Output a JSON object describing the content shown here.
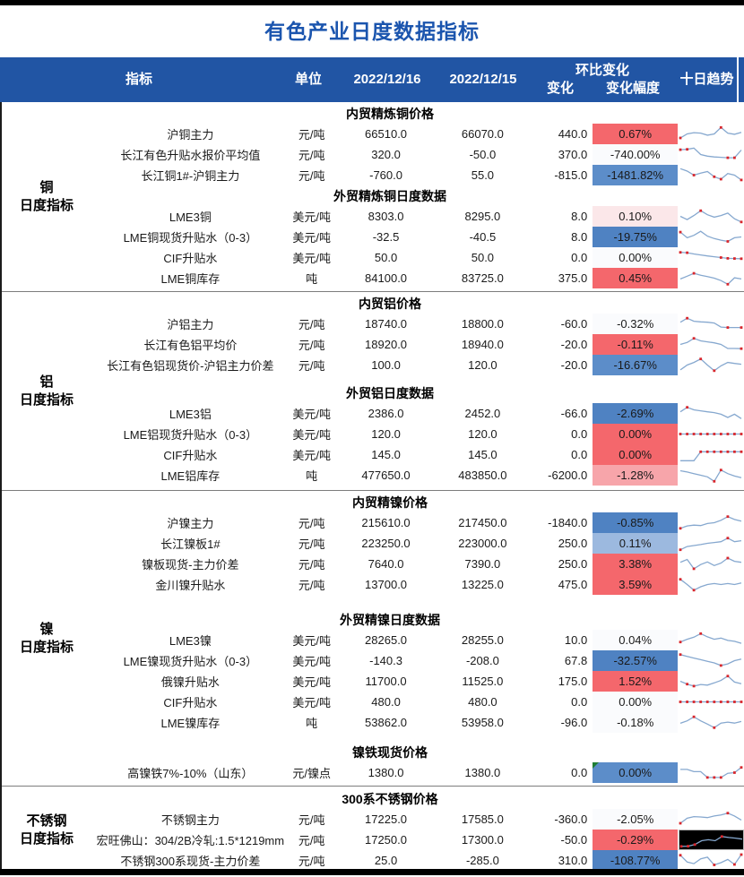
{
  "title": "有色产业日度数据指标",
  "header": {
    "indicator": "指标",
    "unit": "单位",
    "date_current": "2022/12/16",
    "date_previous": "2022/12/15",
    "mom_group": "环比变化",
    "change": "变化",
    "change_rate": "变化幅度",
    "trend": "十日趋势"
  },
  "colors": {
    "header_bg": "#2155a4",
    "title_blue": "#1b55ae",
    "red": "#f4676c",
    "pink": "#f7a5aa",
    "pale_pink": "#fbe7e9",
    "near_white": "#fafbfd",
    "blue_strong": "#4f82c2",
    "blue_mid": "#5c8dc9",
    "blue_light": "#9cb9df",
    "spark_line": "#86a8cf",
    "spark_marker": "#d9262c",
    "comment_green": "#1e7e34"
  },
  "sections": [
    {
      "label_lines": [
        "铜",
        "日度指标"
      ],
      "css": "sec-cu",
      "blocks": [
        {
          "type": "subheader",
          "text": "内贸精炼铜价格",
          "gap": 0
        },
        {
          "type": "row",
          "name": "沪铜主力",
          "unit": "元/吨",
          "v16": "66510.0",
          "v15": "66070.0",
          "chg": "440.0",
          "rate": "0.67%",
          "rate_bg": "#f4676c",
          "spark": {
            "points": [
              0.25,
              0.5,
              0.58,
              0.55,
              0.42,
              0.5,
              0.9,
              0.55,
              0.48,
              0.6
            ],
            "markers": [
              0,
              6
            ]
          }
        },
        {
          "type": "row",
          "name": "长江有色升贴水报价平均值",
          "unit": "元/吨",
          "v16": "320.0",
          "v15": "-50.0",
          "chg": "370.0",
          "rate": "-740.00%",
          "rate_bg": "#fafbfd",
          "spark": {
            "points": [
              0.8,
              0.82,
              0.9,
              0.5,
              0.4,
              0.35,
              0.33,
              0.3,
              0.3,
              0.78
            ],
            "markers": [
              0,
              1,
              7,
              8
            ]
          }
        },
        {
          "type": "row",
          "name": "长江铜1#-沪铜主力",
          "unit": "元/吨",
          "v16": "-760.0",
          "v15": "55.0",
          "chg": "-815.0",
          "rate": "-1481.82%",
          "rate_bg": "#5c8dc9",
          "spark": {
            "points": [
              0.9,
              0.75,
              0.5,
              0.62,
              0.72,
              0.4,
              0.25,
              0.6,
              0.5,
              0.2
            ],
            "markers": [
              2,
              5,
              6,
              9
            ]
          }
        },
        {
          "type": "subheader",
          "text": "外贸精炼铜日度数据",
          "gap": 2
        },
        {
          "type": "row",
          "name": "LME3铜",
          "unit": "美元/吨",
          "v16": "8303.0",
          "v15": "8295.0",
          "chg": "8.0",
          "rate": "0.10%",
          "rate_bg": "#fbe7e9",
          "spark": {
            "points": [
              0.5,
              0.3,
              0.55,
              0.85,
              0.6,
              0.45,
              0.55,
              0.7,
              0.35,
              0.15
            ],
            "markers": [
              3,
              9
            ]
          }
        },
        {
          "type": "row",
          "name": "LME铜现货升贴水（0-3）",
          "unit": "美元/吨",
          "v16": "-32.5",
          "v15": "-40.5",
          "chg": "8.0",
          "rate": "-19.75%",
          "rate_bg": "#4f82c2",
          "spark": {
            "points": [
              0.8,
              0.45,
              0.6,
              0.85,
              0.55,
              0.4,
              0.3,
              0.22,
              0.45,
              0.5
            ],
            "markers": [
              0,
              7
            ]
          }
        },
        {
          "type": "row",
          "name": "CIF升贴水",
          "unit": "美元/吨",
          "v16": "50.0",
          "v15": "50.0",
          "chg": "0.0",
          "rate": "0.00%",
          "rate_bg": "#fafbfd",
          "spark": {
            "points": [
              0.82,
              0.8,
              0.72,
              0.66,
              0.6,
              0.55,
              0.5,
              0.45,
              0.44,
              0.43
            ],
            "markers": [
              0,
              1,
              6,
              7,
              8,
              9
            ]
          }
        },
        {
          "type": "row",
          "name": "LME铜库存",
          "unit": "吨",
          "v16": "84100.0",
          "v15": "83725.0",
          "chg": "375.0",
          "rate": "0.45%",
          "rate_bg": "#f4676c",
          "spark": {
            "points": [
              0.45,
              0.62,
              0.8,
              0.68,
              0.6,
              0.5,
              0.35,
              0.12,
              0.52,
              0.45
            ],
            "markers": [
              2,
              7
            ]
          }
        }
      ]
    },
    {
      "label_lines": [
        "铝",
        "日度指标"
      ],
      "css": "sec-al",
      "blocks": [
        {
          "type": "subheader",
          "text": "内贸铝价格",
          "gap": 0
        },
        {
          "type": "row",
          "name": "沪铝主力",
          "unit": "元/吨",
          "v16": "18740.0",
          "v15": "18800.0",
          "chg": "-60.0",
          "rate": "-0.32%",
          "rate_bg": "#fafbfd",
          "spark": {
            "points": [
              0.6,
              0.85,
              0.66,
              0.62,
              0.6,
              0.55,
              0.3,
              0.27,
              0.27,
              0.27
            ],
            "markers": [
              1,
              7,
              9
            ]
          }
        },
        {
          "type": "row",
          "name": "长江有色铝平均价",
          "unit": "元/吨",
          "v16": "18920.0",
          "v15": "18940.0",
          "chg": "-20.0",
          "rate": "-0.11%",
          "rate_bg": "#f4676c",
          "spark": {
            "points": [
              0.5,
              0.62,
              0.88,
              0.72,
              0.66,
              0.6,
              0.5,
              0.25,
              0.25,
              0.24
            ],
            "markers": [
              2,
              9
            ]
          }
        },
        {
          "type": "row",
          "name": "长江有色铝现货价-沪铝主力价差",
          "unit": "元/吨",
          "v16": "100.0",
          "v15": "120.0",
          "chg": "-20.0",
          "rate": "-16.67%",
          "rate_bg": "#5c8dc9",
          "spark": {
            "points": [
              0.2,
              0.5,
              0.66,
              0.88,
              0.5,
              0.15,
              0.45,
              0.66,
              0.6,
              0.55
            ],
            "markers": [
              3,
              5
            ]
          }
        },
        {
          "type": "subheader",
          "text": "外贸铝日度数据",
          "gap": 10
        },
        {
          "type": "row",
          "name": "LME3铝",
          "unit": "美元/吨",
          "v16": "2386.0",
          "v15": "2452.0",
          "chg": "-66.0",
          "rate": "-2.69%",
          "rate_bg": "#4f82c2",
          "spark": {
            "points": [
              0.6,
              0.88,
              0.72,
              0.66,
              0.6,
              0.55,
              0.45,
              0.25,
              0.45,
              0.18
            ],
            "markers": [
              1
            ]
          }
        },
        {
          "type": "row",
          "name": "LME铝现货升贴水（0-3）",
          "unit": "美元/吨",
          "v16": "120.0",
          "v15": "120.0",
          "chg": "0.0",
          "rate": "0.00%",
          "rate_bg": "#f4676c",
          "spark": {
            "points": [
              0.5,
              0.5,
              0.5,
              0.5,
              0.5,
              0.5,
              0.5,
              0.5,
              0.5,
              0.5
            ],
            "markers": [
              0,
              1,
              2,
              3,
              4,
              5,
              6,
              7,
              8,
              9
            ]
          }
        },
        {
          "type": "row",
          "name": "CIF升贴水",
          "unit": "美元/吨",
          "v16": "145.0",
          "v15": "145.0",
          "chg": "0.0",
          "rate": "0.00%",
          "rate_bg": "#f4676c",
          "spark": {
            "points": [
              0.12,
              0.12,
              0.12,
              0.68,
              0.68,
              0.68,
              0.68,
              0.68,
              0.68,
              0.68
            ],
            "markers": [
              3,
              4,
              5,
              6,
              7,
              8,
              9
            ]
          }
        },
        {
          "type": "row",
          "name": "LME铝库存",
          "unit": "吨",
          "v16": "477650.0",
          "v15": "483850.0",
          "chg": "-6200.0",
          "rate": "-1.28%",
          "rate_bg": "#f7a5aa",
          "spark": {
            "points": [
              0.78,
              0.7,
              0.6,
              0.5,
              0.4,
              0.12,
              0.82,
              0.6,
              0.45,
              0.35
            ],
            "markers": [
              5,
              6
            ]
          }
        }
      ]
    },
    {
      "label_lines": [
        "镍",
        "日度指标"
      ],
      "css": "sec-ni",
      "blocks": [
        {
          "type": "subheader",
          "text": "内贸精镍价格",
          "gap": 0
        },
        {
          "type": "row",
          "name": "沪镍主力",
          "unit": "元/吨",
          "v16": "215610.0",
          "v15": "217450.0",
          "chg": "-1840.0",
          "rate": "-0.85%",
          "rate_bg": "#4f82c2",
          "spark": {
            "points": [
              0.15,
              0.3,
              0.35,
              0.32,
              0.45,
              0.5,
              0.65,
              0.88,
              0.7,
              0.6
            ],
            "markers": [
              0,
              7
            ]
          }
        },
        {
          "type": "row",
          "name": "长江镍板1#",
          "unit": "元/吨",
          "v16": "223250.0",
          "v15": "223000.0",
          "chg": "250.0",
          "rate": "0.11%",
          "rate_bg": "#9cb9df",
          "spark": {
            "points": [
              0.1,
              0.3,
              0.36,
              0.42,
              0.5,
              0.55,
              0.6,
              0.82,
              0.6,
              0.66
            ],
            "markers": [
              0,
              7
            ]
          }
        },
        {
          "type": "row",
          "name": "镍板现货-主力价差",
          "unit": "元/吨",
          "v16": "7640.0",
          "v15": "7390.0",
          "chg": "250.0",
          "rate": "3.38%",
          "rate_bg": "#f4676c",
          "spark": {
            "points": [
              0.6,
              0.78,
              0.2,
              0.46,
              0.62,
              0.4,
              0.55,
              0.86,
              0.66,
              0.6
            ],
            "markers": [
              2,
              7
            ]
          }
        },
        {
          "type": "row",
          "name": "金川镍升贴水",
          "unit": "元/吨",
          "v16": "13700.0",
          "v15": "13225.0",
          "chg": "475.0",
          "rate": "3.59%",
          "rate_bg": "#f4676c",
          "spark": {
            "points": [
              0.82,
              0.5,
              0.15,
              0.36,
              0.5,
              0.56,
              0.5,
              0.56,
              0.5,
              0.6
            ],
            "markers": [
              0,
              2
            ]
          }
        },
        {
          "type": "subheader",
          "text": "外贸精镍日度数据",
          "gap": 18
        },
        {
          "type": "row",
          "name": "LME3镍",
          "unit": "美元/吨",
          "v16": "28265.0",
          "v15": "28255.0",
          "chg": "10.0",
          "rate": "0.04%",
          "rate_bg": "#fafbfd",
          "spark": {
            "points": [
              0.38,
              0.55,
              0.68,
              0.9,
              0.7,
              0.55,
              0.62,
              0.48,
              0.42,
              0.3
            ],
            "markers": [
              0,
              3
            ]
          }
        },
        {
          "type": "row",
          "name": "LME镍现货升贴水（0-3）",
          "unit": "美元/吨",
          "v16": "-140.3",
          "v15": "-208.0",
          "chg": "67.8",
          "rate": "-32.57%",
          "rate_bg": "#4f82c2",
          "spark": {
            "points": [
              0.88,
              0.76,
              0.66,
              0.56,
              0.46,
              0.36,
              0.2,
              0.3,
              0.5,
              0.6
            ],
            "markers": [
              0,
              6
            ]
          }
        },
        {
          "type": "row",
          "name": "俄镍升贴水",
          "unit": "美元/吨",
          "v16": "11700.0",
          "v15": "11525.0",
          "chg": "175.0",
          "rate": "1.52%",
          "rate_bg": "#f4676c",
          "spark": {
            "points": [
              0.5,
              0.32,
              0.2,
              0.3,
              0.26,
              0.4,
              0.55,
              0.82,
              0.45,
              0.35
            ],
            "markers": [
              1,
              2,
              7
            ]
          }
        },
        {
          "type": "row",
          "name": "CIF升贴水",
          "unit": "美元/吨",
          "v16": "480.0",
          "v15": "480.0",
          "chg": "0.0",
          "rate": "0.00%",
          "rate_bg": "#fafbfd",
          "spark": {
            "points": [
              0.5,
              0.5,
              0.5,
              0.5,
              0.5,
              0.5,
              0.5,
              0.5,
              0.5,
              0.5
            ],
            "markers": [
              0,
              1,
              2,
              3,
              4,
              5,
              6,
              7,
              8,
              9
            ]
          }
        },
        {
          "type": "row",
          "name": "LME镍库存",
          "unit": "吨",
          "v16": "53862.0",
          "v15": "53958.0",
          "chg": "-96.0",
          "rate": "-0.18%",
          "rate_bg": "#fafbfd",
          "spark": {
            "points": [
              0.45,
              0.6,
              0.85,
              0.6,
              0.4,
              0.18,
              0.46,
              0.52,
              0.46,
              0.56
            ],
            "markers": [
              2,
              5
            ]
          }
        },
        {
          "type": "subheader",
          "text": "镍铁现货价格",
          "gap": 12
        },
        {
          "type": "row",
          "name": "高镍铁7%-10%（山东）",
          "unit": "元/镍点",
          "v16": "1380.0",
          "v15": "1380.0",
          "chg": "0.0",
          "rate": "0.00%",
          "rate_bg": "#5c8dc9",
          "note": true,
          "spark": {
            "points": [
              0.7,
              0.7,
              0.56,
              0.56,
              0.2,
              0.2,
              0.2,
              0.46,
              0.5,
              0.82
            ],
            "markers": [
              4,
              5,
              6,
              8,
              9
            ]
          }
        }
      ]
    },
    {
      "label_lines": [
        "不锈钢",
        "日度指标"
      ],
      "css": "sec-ss",
      "blocks": [
        {
          "type": "subheader",
          "text": "300系不锈钢价格",
          "gap": 0
        },
        {
          "type": "row",
          "name": "不锈钢主力",
          "unit": "元/吨",
          "v16": "17225.0",
          "v15": "17585.0",
          "chg": "-360.0",
          "rate": "-2.05%",
          "rate_bg": "#fafbfd",
          "spark": {
            "points": [
              0.25,
              0.56,
              0.66,
              0.64,
              0.6,
              0.7,
              0.76,
              0.88,
              0.7,
              0.45
            ],
            "markers": [
              0,
              7
            ]
          }
        },
        {
          "type": "row",
          "name": "宏旺佛山：304/2B冷轧:1.5*1219mm",
          "unit": "元/吨",
          "v16": "17250.0",
          "v15": "17300.0",
          "chg": "-50.0",
          "rate": "-0.29%",
          "rate_bg": "#f4676c",
          "spark_black": true,
          "spark": {
            "points": [
              0.15,
              0.16,
              0.26,
              0.5,
              0.56,
              0.5,
              0.76,
              0.7,
              0.66,
              0.6
            ],
            "markers": [
              0,
              1,
              2,
              6
            ]
          }
        },
        {
          "type": "row",
          "name": "不锈钢300系现货-主力价差",
          "unit": "元/吨",
          "v16": "25.0",
          "v15": "-285.0",
          "chg": "310.0",
          "rate": "-108.77%",
          "rate_bg": "#4f82c2",
          "spark": {
            "points": [
              0.82,
              0.4,
              0.3,
              0.6,
              0.7,
              0.22,
              0.36,
              0.56,
              0.25,
              0.86
            ],
            "markers": [
              0,
              5,
              8,
              9
            ]
          }
        }
      ]
    }
  ]
}
